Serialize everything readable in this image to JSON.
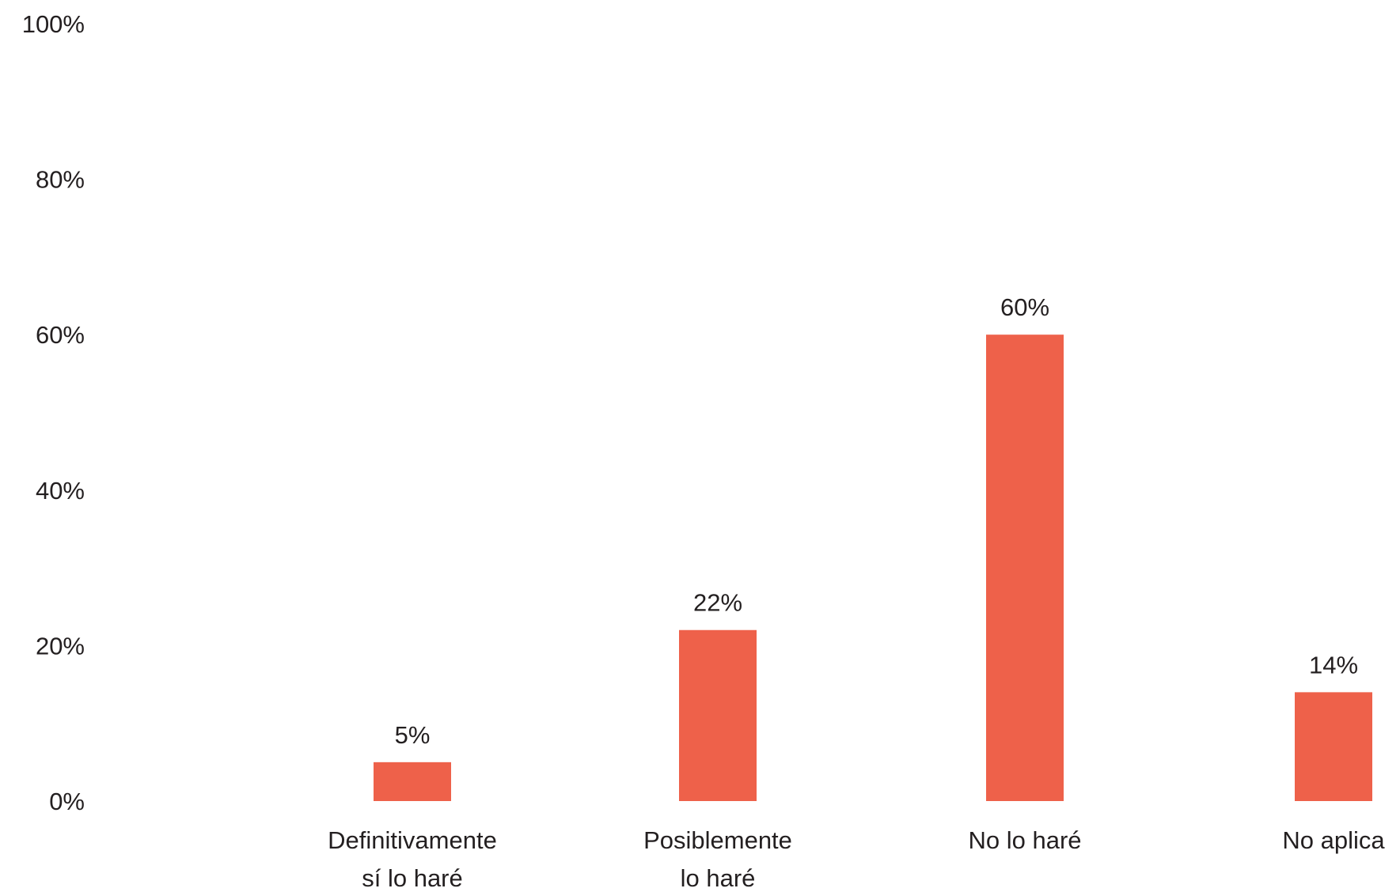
{
  "chart_data": {
    "type": "bar",
    "title": "",
    "xlabel": "",
    "ylabel": "",
    "categories": [
      [
        "Definitivamente",
        "sí lo haré"
      ],
      [
        "Posiblemente",
        "lo haré"
      ],
      [
        "No lo haré"
      ],
      [
        "No aplica"
      ]
    ],
    "values": [
      5,
      22,
      60,
      14
    ],
    "data_labels": [
      "5%",
      "22%",
      "60%",
      "14%"
    ],
    "ylim": [
      0,
      100
    ],
    "yticks": [
      0,
      20,
      40,
      60,
      80,
      100
    ],
    "ytick_labels": [
      "0%",
      "20%",
      "40%",
      "60%",
      "80%",
      "100%"
    ],
    "grid": false,
    "legend": "none",
    "colors": {
      "bar": "#ee614a",
      "text": "#231f20"
    }
  }
}
